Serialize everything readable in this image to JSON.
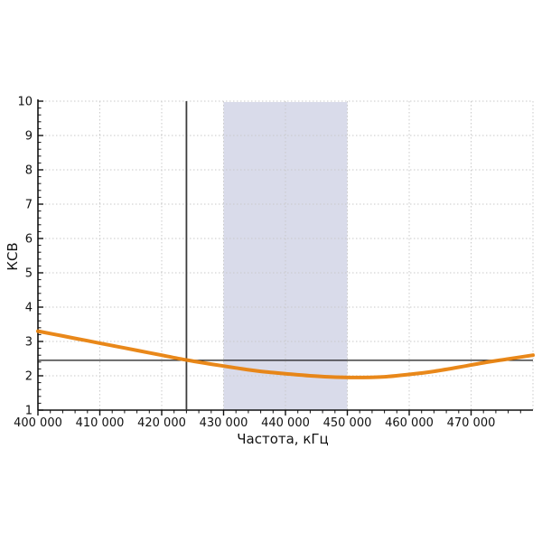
{
  "chart_data": {
    "type": "line",
    "title": "",
    "xlabel": "Частота, кГц",
    "ylabel": "КСВ",
    "xlim": [
      400000,
      480000
    ],
    "ylim": [
      1,
      10
    ],
    "grid": "major-dotted",
    "legend_position": "none",
    "x_tick_values": [
      400000,
      410000,
      420000,
      430000,
      440000,
      450000,
      460000,
      470000
    ],
    "x_tick_labels": [
      "400 000",
      "410 000",
      "420 000",
      "430 000",
      "440 000",
      "450 000",
      "460 000",
      "470 000"
    ],
    "x_minor_step": 2000,
    "y_tick_values": [
      1,
      2,
      3,
      4,
      5,
      6,
      7,
      8,
      9,
      10
    ],
    "y_tick_labels": [
      "1",
      "2",
      "3",
      "4",
      "5",
      "6",
      "7",
      "8",
      "9",
      "10"
    ],
    "y_minor_step": 0.2,
    "series": [
      {
        "name": "КСВ",
        "color": "#e8820e",
        "x": [
          400000,
          404000,
          408000,
          412000,
          416000,
          420000,
          424000,
          428000,
          432000,
          436000,
          440000,
          444000,
          448000,
          452000,
          456000,
          460000,
          464000,
          468000,
          472000,
          476000,
          480000
        ],
        "y": [
          3.3,
          3.16,
          3.02,
          2.88,
          2.74,
          2.6,
          2.46,
          2.34,
          2.23,
          2.13,
          2.06,
          2.0,
          1.96,
          1.95,
          1.97,
          2.04,
          2.13,
          2.25,
          2.38,
          2.49,
          2.6
        ]
      }
    ],
    "highlight_band": {
      "x0": 430000,
      "x1": 450000,
      "color": "#d9dbea"
    },
    "vline": {
      "x": 424000,
      "color": "#3c3c3c"
    },
    "hline": {
      "y": 2.45,
      "color": "#1a1a1a"
    },
    "colors": {
      "grid": "#c9c9c9",
      "axis": "#111111",
      "text": "#111111",
      "background": "#ffffff"
    }
  }
}
